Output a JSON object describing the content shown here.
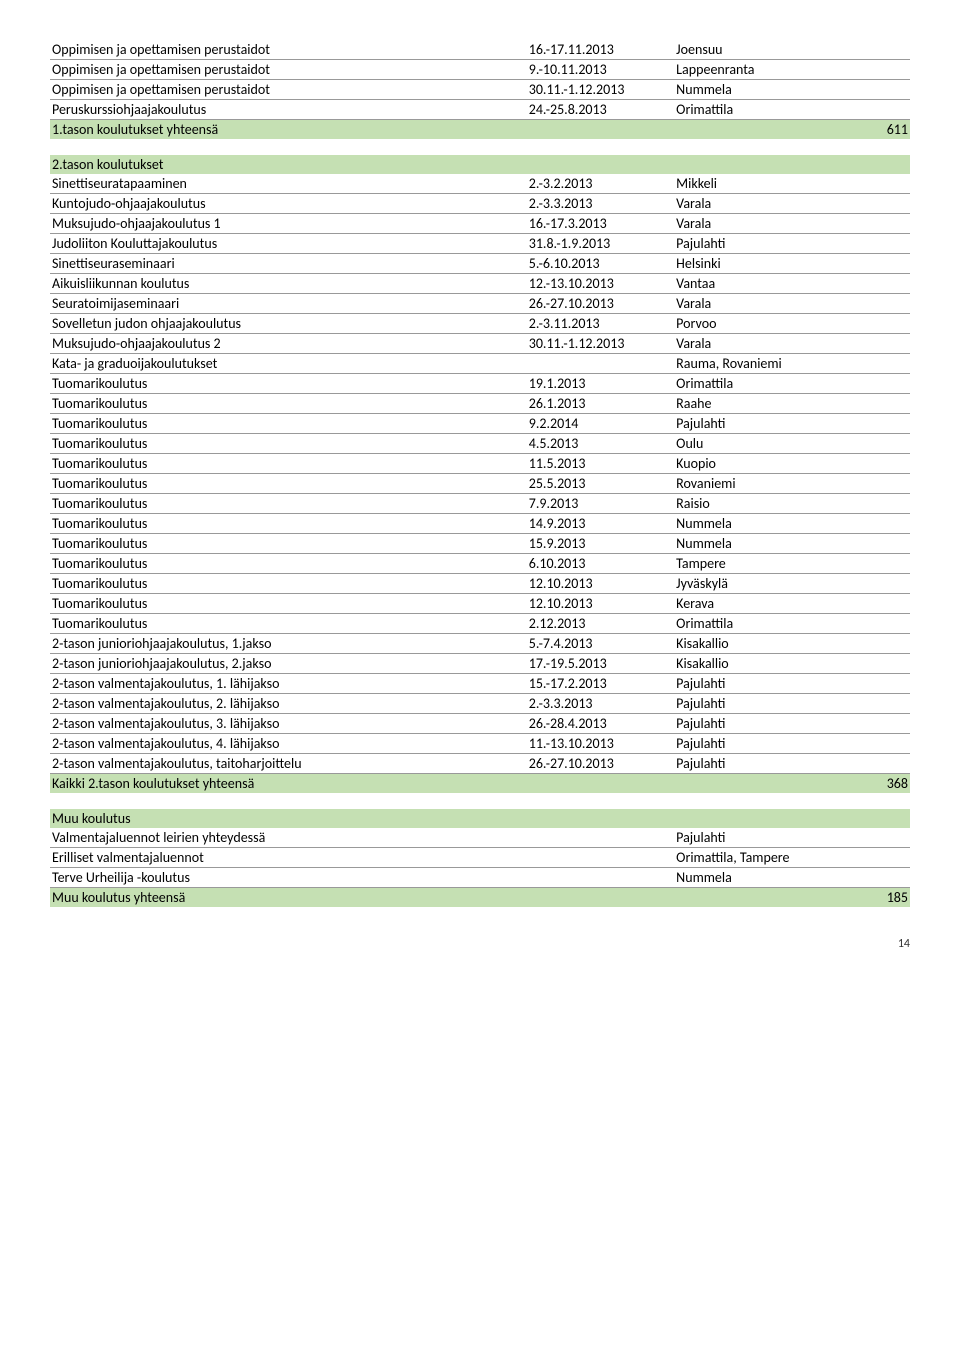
{
  "tables": [
    {
      "rows": [
        {
          "c1": "Oppimisen ja opettamisen perustaidot",
          "c2": "16.-17.11.2013",
          "c3": "Joensuu",
          "c4": "",
          "green": false
        },
        {
          "c1": "Oppimisen ja opettamisen perustaidot",
          "c2": "9.-10.11.2013",
          "c3": "Lappeenranta",
          "c4": "",
          "green": false
        },
        {
          "c1": "Oppimisen ja opettamisen perustaidot",
          "c2": "30.11.-1.12.2013",
          "c3": "Nummela",
          "c4": "",
          "green": false
        },
        {
          "c1": "Peruskurssiohjaajakoulutus",
          "c2": "24.-25.8.2013",
          "c3": "Orimattila",
          "c4": "",
          "green": false
        },
        {
          "c1": "1.tason koulutukset yhteensä",
          "c2": "",
          "c3": "",
          "c4": "611",
          "green": true
        }
      ]
    },
    {
      "rows": [
        {
          "c1": "2.tason koulutukset",
          "c2": "",
          "c3": "",
          "c4": "",
          "green": true
        },
        {
          "c1": "Sinettiseuratapaaminen",
          "c2": "2.-3.2.2013",
          "c3": "Mikkeli",
          "c4": "",
          "green": false
        },
        {
          "c1": "Kuntojudo-ohjaajakoulutus",
          "c2": "2.-3.3.2013",
          "c3": "Varala",
          "c4": "",
          "green": false
        },
        {
          "c1": "Muksujudo-ohjaajakoulutus 1",
          "c2": "16.-17.3.2013",
          "c3": "Varala",
          "c4": "",
          "green": false
        },
        {
          "c1": "Judoliiton Kouluttajakoulutus",
          "c2": "31.8.-1.9.2013",
          "c3": "Pajulahti",
          "c4": "",
          "green": false
        },
        {
          "c1": "Sinettiseuraseminaari",
          "c2": "5.-6.10.2013",
          "c3": "Helsinki",
          "c4": "",
          "green": false
        },
        {
          "c1": "Aikuisliikunnan koulutus",
          "c2": "12.-13.10.2013",
          "c3": "Vantaa",
          "c4": "",
          "green": false
        },
        {
          "c1": "Seuratoimijaseminaari",
          "c2": "26.-27.10.2013",
          "c3": "Varala",
          "c4": "",
          "green": false
        },
        {
          "c1": "Sovelletun judon ohjaajakoulutus",
          "c2": "2.-3.11.2013",
          "c3": "Porvoo",
          "c4": "",
          "green": false
        },
        {
          "c1": "Muksujudo-ohjaajakoulutus 2",
          "c2": "30.11.-1.12.2013",
          "c3": "Varala",
          "c4": "",
          "green": false
        },
        {
          "c1": "Kata- ja graduoijakoulutukset",
          "c2": "",
          "c3": "Rauma, Rovaniemi",
          "c4": "",
          "green": false
        },
        {
          "c1": "Tuomarikoulutus",
          "c2": "19.1.2013",
          "c3": "Orimattila",
          "c4": "",
          "green": false
        },
        {
          "c1": "Tuomarikoulutus",
          "c2": "26.1.2013",
          "c3": "Raahe",
          "c4": "",
          "green": false
        },
        {
          "c1": "Tuomarikoulutus",
          "c2": "9.2.2014",
          "c3": "Pajulahti",
          "c4": "",
          "green": false
        },
        {
          "c1": "Tuomarikoulutus",
          "c2": "4.5.2013",
          "c3": "Oulu",
          "c4": "",
          "green": false
        },
        {
          "c1": "Tuomarikoulutus",
          "c2": "11.5.2013",
          "c3": "Kuopio",
          "c4": "",
          "green": false
        },
        {
          "c1": "Tuomarikoulutus",
          "c2": "25.5.2013",
          "c3": "Rovaniemi",
          "c4": "",
          "green": false
        },
        {
          "c1": "Tuomarikoulutus",
          "c2": "7.9.2013",
          "c3": "Raisio",
          "c4": "",
          "green": false
        },
        {
          "c1": "Tuomarikoulutus",
          "c2": "14.9.2013",
          "c3": "Nummela",
          "c4": "",
          "green": false
        },
        {
          "c1": "Tuomarikoulutus",
          "c2": "15.9.2013",
          "c3": "Nummela",
          "c4": "",
          "green": false
        },
        {
          "c1": "Tuomarikoulutus",
          "c2": "6.10.2013",
          "c3": "Tampere",
          "c4": "",
          "green": false
        },
        {
          "c1": "Tuomarikoulutus",
          "c2": "12.10.2013",
          "c3": "Jyväskylä",
          "c4": "",
          "green": false
        },
        {
          "c1": "Tuomarikoulutus",
          "c2": "12.10.2013",
          "c3": "Kerava",
          "c4": "",
          "green": false
        },
        {
          "c1": "Tuomarikoulutus",
          "c2": "2.12.2013",
          "c3": "Orimattila",
          "c4": "",
          "green": false
        },
        {
          "c1": "2-tason junioriohjaajakoulutus, 1.jakso",
          "c2": "5.-7.4.2013",
          "c3": "Kisakallio",
          "c4": "",
          "green": false
        },
        {
          "c1": "2-tason junioriohjaajakoulutus, 2.jakso",
          "c2": "17.-19.5.2013",
          "c3": "Kisakallio",
          "c4": "",
          "green": false
        },
        {
          "c1": "2-tason valmentajakoulutus, 1. lähijakso",
          "c2": "15.-17.2.2013",
          "c3": "Pajulahti",
          "c4": "",
          "green": false
        },
        {
          "c1": "2-tason valmentajakoulutus, 2. lähijakso",
          "c2": "2.-3.3.2013",
          "c3": "Pajulahti",
          "c4": "",
          "green": false
        },
        {
          "c1": "2-tason valmentajakoulutus, 3. lähijakso",
          "c2": "26.-28.4.2013",
          "c3": "Pajulahti",
          "c4": "",
          "green": false
        },
        {
          "c1": "2-tason valmentajakoulutus, 4. lähijakso",
          "c2": "11.-13.10.2013",
          "c3": "Pajulahti",
          "c4": "",
          "green": false
        },
        {
          "c1": "2-tason valmentajakoulutus, taitoharjoittelu",
          "c2": "26.-27.10.2013",
          "c3": "Pajulahti",
          "c4": "",
          "green": false
        },
        {
          "c1": "Kaikki 2.tason koulutukset yhteensä",
          "c2": "",
          "c3": "",
          "c4": "368",
          "green": true
        }
      ]
    },
    {
      "rows": [
        {
          "c1": "Muu koulutus",
          "c2": "",
          "c3": "",
          "c4": "",
          "green": true
        },
        {
          "c1": "Valmentajaluennot  leirien yhteydessä",
          "c2": "",
          "c3": "Pajulahti",
          "c4": "",
          "green": false
        },
        {
          "c1": "Erilliset valmentajaluennot",
          "c2": "",
          "c3": "Orimattila, Tampere",
          "c4": "",
          "green": false
        },
        {
          "c1": "Terve Urheilija -koulutus",
          "c2": "",
          "c3": "Nummela",
          "c4": "",
          "green": false
        },
        {
          "c1": "Muu koulutus yhteensä",
          "c2": "",
          "c3": "",
          "c4": "185",
          "green": true
        }
      ]
    }
  ],
  "page_number": "14"
}
